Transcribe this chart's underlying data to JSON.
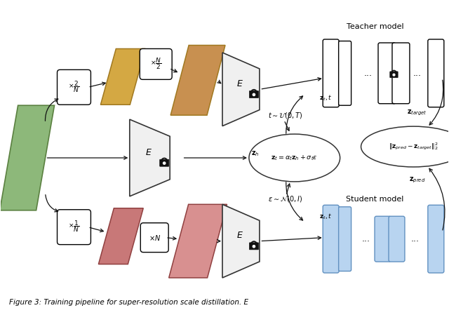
{
  "fig_width": 6.4,
  "fig_height": 4.49,
  "dpi": 100,
  "bg_color": "#ffffff",
  "colors": {
    "green": "#8db87a",
    "green_edge": "#5a8040",
    "yellow1": "#d4a843",
    "yellow1_edge": "#a07820",
    "yellow2": "#c89050",
    "yellow2_edge": "#a07820",
    "red1": "#c87878",
    "red1_edge": "#904040",
    "red2": "#d89090",
    "red2_edge": "#904040",
    "blue_fill": "#b8d4f0",
    "blue_edge": "#6090c0",
    "white": "#ffffff",
    "black": "#111111",
    "gray_enc": "#f0f0f0",
    "gray_enc_edge": "#333333"
  },
  "teacher_label": "Teacher model",
  "student_label": "Student model",
  "ellipse_label": "$\\mathbf{z}_t = \\alpha_t\\mathbf{z}_h + \\sigma_t\\epsilon$",
  "loss_label": "$\\|\\mathbf{z}_{pred} - \\mathbf{z}_{target}\\|_2^2$",
  "zh_label": "$\\mathbf{z}_h$",
  "zt_label": "$\\mathbf{z}_t, t$",
  "t_dist_label": "$t \\sim \\mathcal{U}(0, T)$",
  "eps_dist_label": "$\\epsilon \\sim \\mathcal{N}(0, I)$",
  "z_target_label": "$\\mathbf{z}_{target}$",
  "z_pred_label": "$\\mathbf{z}_{pred}$",
  "scale_2N_label": "$\\times\\dfrac{2}{N}$",
  "scale_N2_label": "$\\times\\dfrac{N}{2}$",
  "scale_1N_label": "$\\times\\dfrac{1}{N}$",
  "scale_N_label": "$\\times N$",
  "E_label": "$E$",
  "caption": "Figure 3: Training pipeline for super-resolution scale distillation. E"
}
